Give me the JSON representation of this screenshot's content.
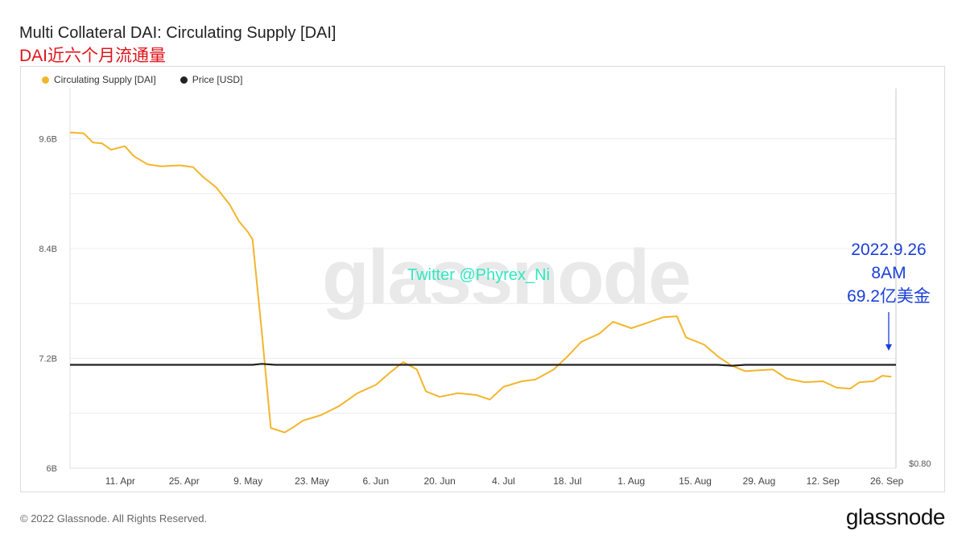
{
  "header": {
    "title": "Multi Collateral DAI: Circulating Supply [DAI]",
    "subtitle": "DAI近六个月流通量"
  },
  "legend": [
    {
      "label": "Circulating Supply [DAI]",
      "color": "#f3b52b"
    },
    {
      "label": "Price [USD]",
      "color": "#222222"
    }
  ],
  "watermark": "glassnode",
  "twitter": "Twitter @Phyrex_Ni",
  "annotation": {
    "date": "2022.9.26",
    "time": "8AM",
    "amount": "69.2亿美金"
  },
  "footer": {
    "copyright": "© 2022 Glassnode. All Rights Reserved.",
    "brand": "glassnode"
  },
  "chart_data": {
    "type": "line",
    "title": "Multi Collateral DAI: Circulating Supply [DAI]",
    "x_tick_labels": [
      "11. Apr",
      "25. Apr",
      "9. May",
      "23. May",
      "6. Jun",
      "20. Jun",
      "4. Jul",
      "18. Jul",
      "1. Aug",
      "15. Aug",
      "29. Aug",
      "12. Sep",
      "26. Sep"
    ],
    "x_range": [
      "2022-03-31",
      "2022-09-28"
    ],
    "y_left": {
      "ticks": [
        "6B",
        "7.2B",
        "8.4B",
        "9.6B"
      ],
      "tick_values": [
        6.0,
        7.2,
        8.4,
        9.6
      ],
      "range": [
        6.0,
        10.15
      ],
      "unit": "B"
    },
    "y_right": {
      "ticks": [
        "$0.80"
      ]
    },
    "grid": true,
    "legend_position": "top-left",
    "series": [
      {
        "name": "Circulating Supply [DAI]",
        "color": "#f3b52b",
        "axis": "left",
        "points": [
          [
            "2022-03-31",
            9.67
          ],
          [
            "2022-04-03",
            9.66
          ],
          [
            "2022-04-05",
            9.56
          ],
          [
            "2022-04-07",
            9.55
          ],
          [
            "2022-04-09",
            9.48
          ],
          [
            "2022-04-12",
            9.52
          ],
          [
            "2022-04-14",
            9.41
          ],
          [
            "2022-04-17",
            9.32
          ],
          [
            "2022-04-20",
            9.3
          ],
          [
            "2022-04-24",
            9.31
          ],
          [
            "2022-04-27",
            9.29
          ],
          [
            "2022-04-29",
            9.19
          ],
          [
            "2022-05-02",
            9.07
          ],
          [
            "2022-05-05",
            8.88
          ],
          [
            "2022-05-07",
            8.7
          ],
          [
            "2022-05-09",
            8.58
          ],
          [
            "2022-05-10",
            8.5
          ],
          [
            "2022-05-12",
            7.5
          ],
          [
            "2022-05-14",
            6.44
          ],
          [
            "2022-05-17",
            6.39
          ],
          [
            "2022-05-19",
            6.45
          ],
          [
            "2022-05-21",
            6.52
          ],
          [
            "2022-05-25",
            6.58
          ],
          [
            "2022-05-29",
            6.68
          ],
          [
            "2022-06-02",
            6.82
          ],
          [
            "2022-06-06",
            6.91
          ],
          [
            "2022-06-09",
            7.04
          ],
          [
            "2022-06-12",
            7.16
          ],
          [
            "2022-06-15",
            7.08
          ],
          [
            "2022-06-17",
            6.84
          ],
          [
            "2022-06-20",
            6.78
          ],
          [
            "2022-06-24",
            6.82
          ],
          [
            "2022-06-28",
            6.8
          ],
          [
            "2022-07-01",
            6.75
          ],
          [
            "2022-07-04",
            6.89
          ],
          [
            "2022-07-08",
            6.95
          ],
          [
            "2022-07-11",
            6.97
          ],
          [
            "2022-07-15",
            7.08
          ],
          [
            "2022-07-18",
            7.22
          ],
          [
            "2022-07-21",
            7.38
          ],
          [
            "2022-07-25",
            7.47
          ],
          [
            "2022-07-28",
            7.6
          ],
          [
            "2022-08-01",
            7.53
          ],
          [
            "2022-08-04",
            7.58
          ],
          [
            "2022-08-08",
            7.65
          ],
          [
            "2022-08-11",
            7.66
          ],
          [
            "2022-08-13",
            7.43
          ],
          [
            "2022-08-17",
            7.35
          ],
          [
            "2022-08-20",
            7.22
          ],
          [
            "2022-08-23",
            7.12
          ],
          [
            "2022-08-26",
            7.06
          ],
          [
            "2022-08-29",
            7.07
          ],
          [
            "2022-09-01",
            7.08
          ],
          [
            "2022-09-04",
            6.98
          ],
          [
            "2022-09-08",
            6.94
          ],
          [
            "2022-09-12",
            6.95
          ],
          [
            "2022-09-15",
            6.88
          ],
          [
            "2022-09-18",
            6.87
          ],
          [
            "2022-09-20",
            6.94
          ],
          [
            "2022-09-23",
            6.95
          ],
          [
            "2022-09-25",
            7.01
          ],
          [
            "2022-09-27",
            7.0
          ]
        ]
      },
      {
        "name": "Price [USD]",
        "color": "#222222",
        "axis": "right",
        "note": "flat line around $1.00",
        "points": [
          [
            "2022-03-31",
            7.13
          ],
          [
            "2022-05-10",
            7.13
          ],
          [
            "2022-05-12",
            7.14
          ],
          [
            "2022-05-15",
            7.13
          ],
          [
            "2022-08-20",
            7.13
          ],
          [
            "2022-08-23",
            7.12
          ],
          [
            "2022-08-26",
            7.13
          ],
          [
            "2022-09-28",
            7.13
          ]
        ]
      }
    ]
  }
}
